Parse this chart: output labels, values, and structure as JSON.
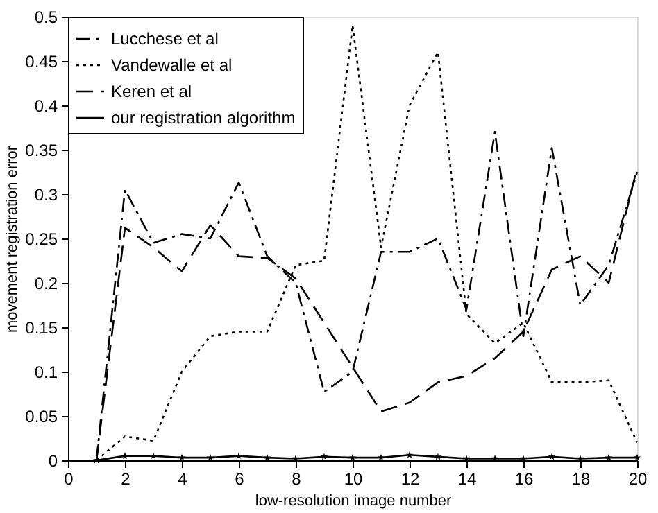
{
  "chart_data": {
    "type": "line",
    "xlabel": "low-resolution image number",
    "ylabel": "movement registration error",
    "x": [
      1,
      2,
      3,
      4,
      5,
      6,
      7,
      8,
      9,
      10,
      11,
      12,
      13,
      14,
      15,
      16,
      17,
      18,
      19,
      20
    ],
    "series": [
      {
        "name": "Lucchese et al",
        "color": "#000000",
        "line_style": "dashdot",
        "marker": "none",
        "values": [
          0,
          0.305,
          0.245,
          0.255,
          0.25,
          0.313,
          0.23,
          0.2,
          0.077,
          0.1,
          0.235,
          0.235,
          0.25,
          0.17,
          0.37,
          0.14,
          0.352,
          0.175,
          0.22,
          0.325
        ]
      },
      {
        "name": "Vandewalle et al",
        "color": "#000000",
        "line_style": "dotted",
        "marker": "none",
        "values": [
          0,
          0.027,
          0.022,
          0.1,
          0.14,
          0.145,
          0.145,
          0.22,
          0.225,
          0.49,
          0.24,
          0.4,
          0.46,
          0.165,
          0.132,
          0.155,
          0.088,
          0.088,
          0.09,
          0.02
        ]
      },
      {
        "name": "Keren et al",
        "color": "#000000",
        "line_style": "dashed",
        "marker": "none",
        "values": [
          0,
          0.262,
          0.24,
          0.213,
          0.265,
          0.23,
          0.228,
          0.205,
          0.155,
          0.105,
          0.055,
          0.065,
          0.088,
          0.095,
          0.115,
          0.145,
          0.215,
          0.23,
          0.2,
          0.33
        ]
      },
      {
        "name": "our registration algorithm",
        "color": "#000000",
        "line_style": "solid",
        "marker": "star",
        "values": [
          0,
          0.005,
          0.005,
          0.003,
          0.003,
          0.005,
          0.003,
          0.002,
          0.004,
          0.003,
          0.003,
          0.006,
          0.004,
          0.002,
          0.002,
          0.002,
          0.004,
          0.002,
          0.003,
          0.003
        ]
      }
    ],
    "xlim": [
      0,
      20
    ],
    "xticks": [
      0,
      2,
      4,
      6,
      8,
      10,
      12,
      14,
      16,
      18,
      20
    ],
    "ylim": [
      0,
      0.5
    ],
    "yticks": [
      0,
      0.05,
      0.1,
      0.15,
      0.2,
      0.25,
      0.3,
      0.35,
      0.4,
      0.45,
      0.5
    ],
    "grid": false,
    "legend": "top left"
  }
}
